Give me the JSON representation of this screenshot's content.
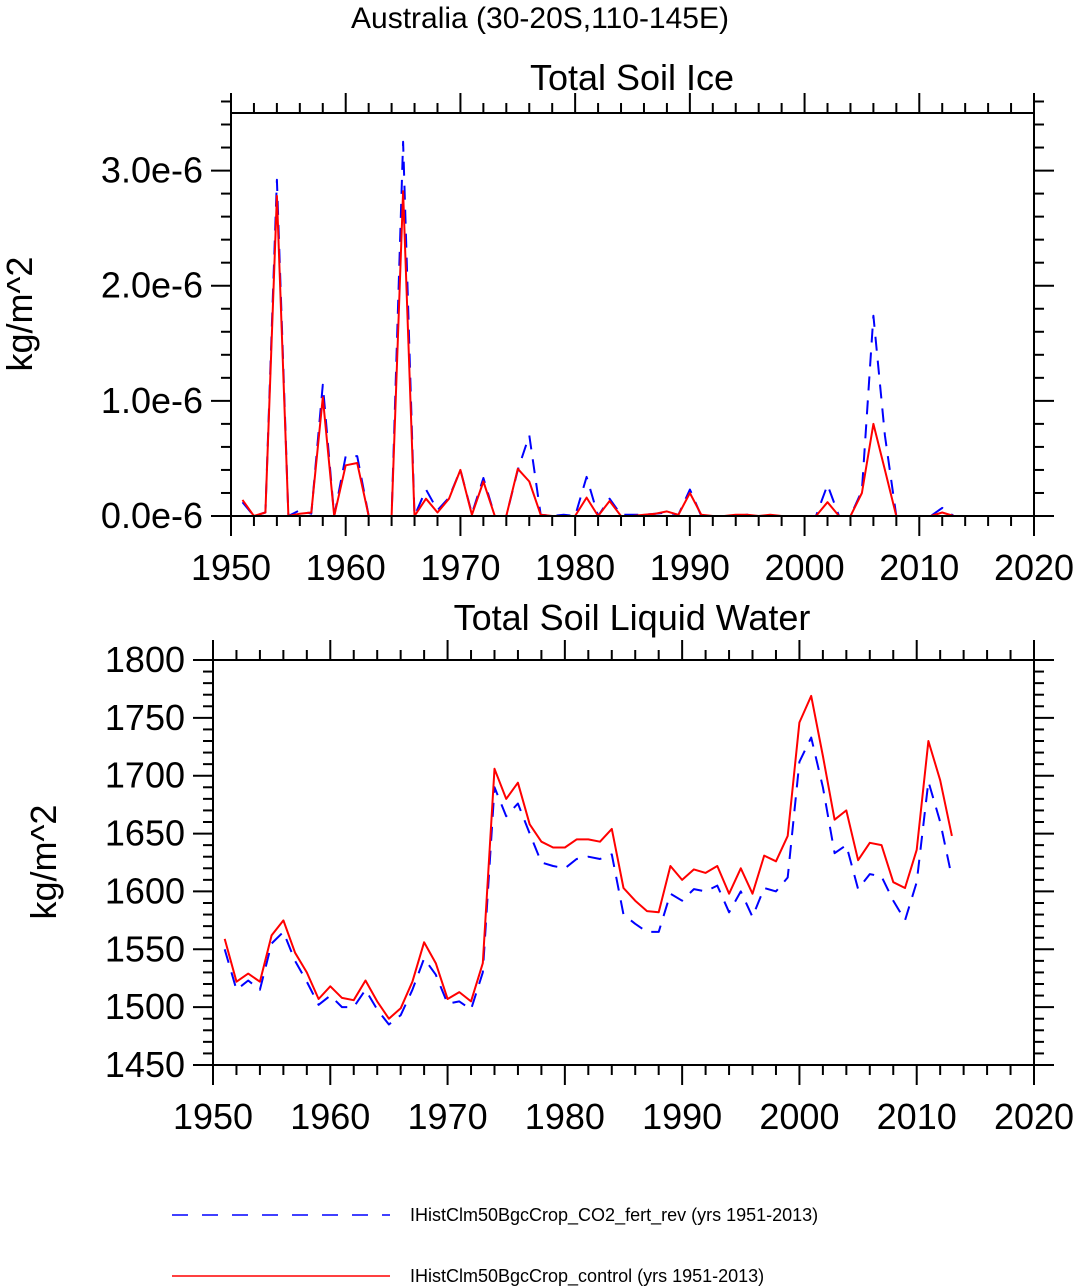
{
  "figure": {
    "supertitle": "Australia (30-20S,110-145E)"
  },
  "legend": {
    "entries": [
      {
        "label": "IHistClm50BgcCrop_CO2_fert_rev (yrs 1951-2013)",
        "color": "#0000ff",
        "style": "dashed"
      },
      {
        "label": "IHistClm50BgcCrop_control (yrs 1951-2013)",
        "color": "#ff0000",
        "style": "solid"
      }
    ]
  },
  "chart_data": [
    {
      "type": "line",
      "title": "Total Soil Ice",
      "xlabel": "",
      "ylabel": "kg/m^2",
      "xlim": [
        1950,
        2020
      ],
      "ylim": [
        0,
        3.5e-06
      ],
      "xticks": [
        1950,
        1960,
        1970,
        1980,
        1990,
        2000,
        2010,
        2020
      ],
      "xtick_labels": [
        "1950",
        "1960",
        "1970",
        "1980",
        "1990",
        "2000",
        "2010",
        "2020"
      ],
      "yticks": [
        0,
        1e-06,
        2e-06,
        3e-06
      ],
      "ytick_labels": [
        "0.0e-6",
        "1.0e-6",
        "2.0e-6",
        "3.0e-6"
      ],
      "grid": false,
      "x": [
        1951,
        1952,
        1953,
        1954,
        1955,
        1956,
        1957,
        1958,
        1959,
        1960,
        1961,
        1962,
        1963,
        1964,
        1965,
        1966,
        1967,
        1968,
        1969,
        1970,
        1971,
        1972,
        1973,
        1974,
        1975,
        1976,
        1977,
        1978,
        1979,
        1980,
        1981,
        1982,
        1983,
        1984,
        1985,
        1986,
        1987,
        1988,
        1989,
        1990,
        1991,
        1992,
        1993,
        1994,
        1995,
        1996,
        1997,
        1998,
        1999,
        2000,
        2001,
        2002,
        2003,
        2004,
        2005,
        2006,
        2007,
        2008,
        2009,
        2010,
        2011,
        2012,
        2013
      ],
      "series": [
        {
          "name": "IHistClm50BgcCrop_CO2_fert_rev (yrs 1951-2013)",
          "color": "#0000ff",
          "style": "dashed",
          "values": [
            1.2e-07,
            0.0,
            3e-08,
            2.92e-06,
            0.0,
            5e-08,
            2e-08,
            1.14e-06,
            0.0,
            5.2e-07,
            5.2e-07,
            0.0,
            0.0,
            0.0,
            3.25e-06,
            0.0,
            2.3e-07,
            5e-08,
            1.6e-07,
            4e-07,
            2e-08,
            3.3e-07,
            0.0,
            0.0,
            4e-07,
            7e-07,
            1e-08,
            0.0,
            1e-08,
            0.0,
            3.4e-07,
            0.0,
            1.5e-07,
            1e-08,
            1e-08,
            1e-08,
            2e-08,
            3e-08,
            1e-08,
            2.3e-07,
            0.0,
            0.0,
            0.0,
            0.0,
            1e-08,
            0.0,
            0.0,
            0.0,
            0.0,
            0.0,
            0.0,
            2.7e-07,
            0.0,
            0.0,
            2.2e-07,
            1.74e-06,
            7e-07,
            0.0,
            0.0,
            0.0,
            0.0,
            7e-08,
            0.0
          ]
        },
        {
          "name": "IHistClm50BgcCrop_control (yrs 1951-2013)",
          "color": "#ff0000",
          "style": "solid",
          "values": [
            1.4e-07,
            0.0,
            3e-08,
            2.78e-06,
            0.0,
            2e-08,
            3e-08,
            1.03e-06,
            0.0,
            4.4e-07,
            4.6e-07,
            0.0,
            0.0,
            0.0,
            2.82e-06,
            0.0,
            1.5e-07,
            3e-08,
            1.5e-07,
            4e-07,
            1e-08,
            3e-07,
            0.0,
            0.0,
            4.1e-07,
            3e-07,
            1e-08,
            0.0,
            0.0,
            0.0,
            1.6e-07,
            0.0,
            1.3e-07,
            0.0,
            0.0,
            1e-08,
            2e-08,
            4e-08,
            1e-08,
            2e-07,
            1e-08,
            0.0,
            0.0,
            1e-08,
            1e-08,
            0.0,
            1e-08,
            0.0,
            0.0,
            0.0,
            0.0,
            1.2e-07,
            0.0,
            0.0,
            2e-07,
            8e-07,
            4e-07,
            0.0,
            0.0,
            0.0,
            0.0,
            3e-08,
            0.0
          ]
        }
      ]
    },
    {
      "type": "line",
      "title": "Total Soil Liquid Water",
      "xlabel": "",
      "ylabel": "kg/m^2",
      "xlim": [
        1950,
        2020
      ],
      "ylim": [
        1450,
        1800
      ],
      "xticks": [
        1950,
        1960,
        1970,
        1980,
        1990,
        2000,
        2010,
        2020
      ],
      "xtick_labels": [
        "1950",
        "1960",
        "1970",
        "1980",
        "1990",
        "2000",
        "2010",
        "2020"
      ],
      "yticks": [
        1450,
        1500,
        1550,
        1600,
        1650,
        1700,
        1750,
        1800
      ],
      "ytick_labels": [
        "1450",
        "1500",
        "1550",
        "1600",
        "1650",
        "1700",
        "1750",
        "1800"
      ],
      "grid": false,
      "x": [
        1951,
        1952,
        1953,
        1954,
        1955,
        1956,
        1957,
        1958,
        1959,
        1960,
        1961,
        1962,
        1963,
        1964,
        1965,
        1966,
        1967,
        1968,
        1969,
        1970,
        1971,
        1972,
        1973,
        1974,
        1975,
        1976,
        1977,
        1978,
        1979,
        1980,
        1981,
        1982,
        1983,
        1984,
        1985,
        1986,
        1987,
        1988,
        1989,
        1990,
        1991,
        1992,
        1993,
        1994,
        1995,
        1996,
        1997,
        1998,
        1999,
        2000,
        2001,
        2002,
        2003,
        2004,
        2005,
        2006,
        2007,
        2008,
        2009,
        2010,
        2011,
        2012,
        2013
      ],
      "series": [
        {
          "name": "IHistClm50BgcCrop_CO2_fert_rev (yrs 1951-2013)",
          "color": "#0000ff",
          "style": "dashed",
          "values": [
            1550,
            1515,
            1523,
            1515,
            1555,
            1565,
            1540,
            1522,
            1502,
            1510,
            1500,
            1500,
            1515,
            1498,
            1485,
            1493,
            1515,
            1542,
            1528,
            1503,
            1505,
            1498,
            1530,
            1690,
            1665,
            1676,
            1650,
            1625,
            1622,
            1620,
            1628,
            1630,
            1628,
            1632,
            1580,
            1572,
            1565,
            1565,
            1598,
            1592,
            1602,
            1600,
            1605,
            1582,
            1600,
            1578,
            1603,
            1600,
            1612,
            1712,
            1733,
            1690,
            1633,
            1640,
            1602,
            1615,
            1613,
            1592,
            1575,
            1608,
            1695,
            1660,
            1612
          ]
        },
        {
          "name": "IHistClm50BgcCrop_control (yrs 1951-2013)",
          "color": "#ff0000",
          "style": "solid",
          "values": [
            1559,
            1522,
            1529,
            1522,
            1562,
            1575,
            1547,
            1530,
            1507,
            1518,
            1508,
            1506,
            1523,
            1505,
            1490,
            1499,
            1522,
            1556,
            1538,
            1507,
            1513,
            1505,
            1538,
            1706,
            1680,
            1694,
            1658,
            1643,
            1638,
            1638,
            1645,
            1645,
            1643,
            1654,
            1603,
            1592,
            1583,
            1582,
            1622,
            1610,
            1619,
            1616,
            1622,
            1598,
            1620,
            1598,
            1631,
            1626,
            1648,
            1746,
            1769,
            1717,
            1662,
            1670,
            1627,
            1642,
            1640,
            1608,
            1603,
            1636,
            1730,
            1696,
            1648
          ]
        }
      ]
    }
  ]
}
